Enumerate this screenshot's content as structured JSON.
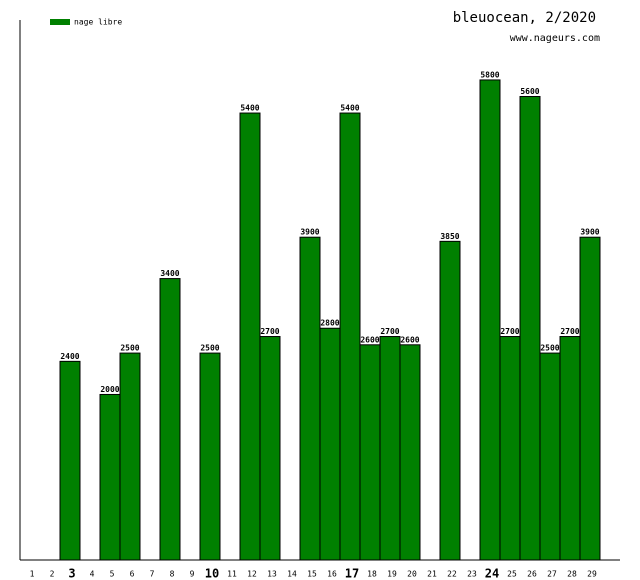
{
  "chart_data": {
    "type": "bar",
    "title": "bleuocean, 2/2020",
    "subtitle": "www.nageurs.com",
    "legend": "nage libre",
    "color": "#008000",
    "categories": [
      "1",
      "2",
      "3",
      "4",
      "5",
      "6",
      "7",
      "8",
      "9",
      "10",
      "11",
      "12",
      "13",
      "14",
      "15",
      "16",
      "17",
      "18",
      "19",
      "20",
      "21",
      "22",
      "23",
      "24",
      "25",
      "26",
      "27",
      "28",
      "29"
    ],
    "values": [
      null,
      null,
      2400,
      null,
      2000,
      2500,
      null,
      3400,
      null,
      2500,
      null,
      5400,
      2700,
      null,
      3900,
      2800,
      5400,
      2600,
      2700,
      2600,
      null,
      3850,
      null,
      5800,
      2700,
      5600,
      2500,
      2700,
      3900
    ],
    "bold_ticks": [
      2,
      9,
      16,
      23
    ],
    "ylim": [
      0,
      6500
    ]
  }
}
